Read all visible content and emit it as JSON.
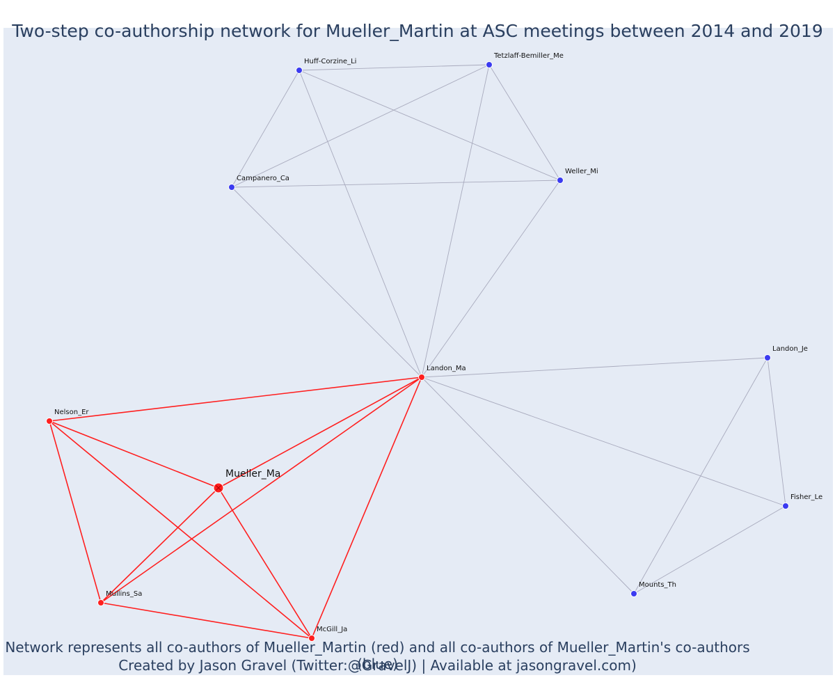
{
  "title": "Two-step co-authorship network for Mueller_Martin at ASC meetings between 2014 and 2019",
  "caption": {
    "line1": "Network represents all co-authors of Mueller_Martin (red) and all co-authors of Mueller_Martin's co-authors (blue)",
    "line2": "Created by Jason Gravel (Twitter:@GravelJ) | Available at jasongravel.com)"
  },
  "colors": {
    "background": "#e5ebf5",
    "red": "#ff1f1f",
    "blue": "#3b3bf0",
    "gray_edge": "#a8aabd",
    "text": "#2a3f5f"
  },
  "nodes": [
    {
      "id": "Mueller_Ma",
      "label": "Mueller_Ma",
      "group": "focal"
    },
    {
      "id": "Landon_Ma",
      "label": "Landon_Ma",
      "group": "red"
    },
    {
      "id": "Nelson_Er",
      "label": "Nelson_Er",
      "group": "red"
    },
    {
      "id": "Mullins_Sa",
      "label": "Mullins_Sa",
      "group": "red"
    },
    {
      "id": "McGill_Ja",
      "label": "McGill_Ja",
      "group": "red"
    },
    {
      "id": "Huff-Corzine_Li",
      "label": "Huff-Corzine_Li",
      "group": "blue"
    },
    {
      "id": "Tetzlaff-Bemiller_Me",
      "label": "Tetzlaff-Bemiller_Me",
      "group": "blue"
    },
    {
      "id": "Campanero_Ca",
      "label": "Campanero_Ca",
      "group": "blue"
    },
    {
      "id": "Weller_Mi",
      "label": "Weller_Mi",
      "group": "blue"
    },
    {
      "id": "Landon_Je",
      "label": "Landon_Je",
      "group": "blue"
    },
    {
      "id": "Fisher_Le",
      "label": "Fisher_Le",
      "group": "blue"
    },
    {
      "id": "Mounts_Th",
      "label": "Mounts_Th",
      "group": "blue"
    }
  ],
  "edges": [
    {
      "source": "Mueller_Ma",
      "target": "Landon_Ma",
      "type": "red"
    },
    {
      "source": "Mueller_Ma",
      "target": "Nelson_Er",
      "type": "red"
    },
    {
      "source": "Mueller_Ma",
      "target": "Mullins_Sa",
      "type": "red"
    },
    {
      "source": "Mueller_Ma",
      "target": "McGill_Ja",
      "type": "red"
    },
    {
      "source": "Landon_Ma",
      "target": "Nelson_Er",
      "type": "red"
    },
    {
      "source": "Landon_Ma",
      "target": "Mullins_Sa",
      "type": "red"
    },
    {
      "source": "Landon_Ma",
      "target": "McGill_Ja",
      "type": "red"
    },
    {
      "source": "Nelson_Er",
      "target": "Mullins_Sa",
      "type": "red"
    },
    {
      "source": "Nelson_Er",
      "target": "McGill_Ja",
      "type": "red"
    },
    {
      "source": "Mullins_Sa",
      "target": "McGill_Ja",
      "type": "red"
    },
    {
      "source": "Landon_Ma",
      "target": "Huff-Corzine_Li",
      "type": "gray"
    },
    {
      "source": "Landon_Ma",
      "target": "Tetzlaff-Bemiller_Me",
      "type": "gray"
    },
    {
      "source": "Landon_Ma",
      "target": "Campanero_Ca",
      "type": "gray"
    },
    {
      "source": "Landon_Ma",
      "target": "Weller_Mi",
      "type": "gray"
    },
    {
      "source": "Landon_Ma",
      "target": "Landon_Je",
      "type": "gray"
    },
    {
      "source": "Landon_Ma",
      "target": "Fisher_Le",
      "type": "gray"
    },
    {
      "source": "Landon_Ma",
      "target": "Mounts_Th",
      "type": "gray"
    },
    {
      "source": "Huff-Corzine_Li",
      "target": "Tetzlaff-Bemiller_Me",
      "type": "gray"
    },
    {
      "source": "Huff-Corzine_Li",
      "target": "Campanero_Ca",
      "type": "gray"
    },
    {
      "source": "Huff-Corzine_Li",
      "target": "Weller_Mi",
      "type": "gray"
    },
    {
      "source": "Tetzlaff-Bemiller_Me",
      "target": "Campanero_Ca",
      "type": "gray"
    },
    {
      "source": "Tetzlaff-Bemiller_Me",
      "target": "Weller_Mi",
      "type": "gray"
    },
    {
      "source": "Campanero_Ca",
      "target": "Weller_Mi",
      "type": "gray"
    },
    {
      "source": "Landon_Je",
      "target": "Fisher_Le",
      "type": "gray"
    },
    {
      "source": "Landon_Je",
      "target": "Mounts_Th",
      "type": "gray"
    },
    {
      "source": "Fisher_Le",
      "target": "Mounts_Th",
      "type": "gray"
    }
  ]
}
